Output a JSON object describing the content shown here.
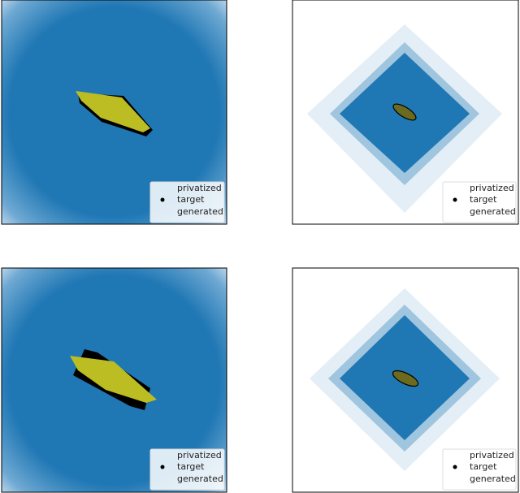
{
  "panels": [
    {
      "legend": [
        "privatized",
        "target",
        "generated"
      ]
    },
    {
      "legend": [
        "privatized",
        "target",
        "generated"
      ]
    },
    {
      "legend": [
        "privatized",
        "target",
        "generated"
      ]
    },
    {
      "legend": [
        "privatized",
        "target",
        "generated"
      ]
    }
  ]
}
